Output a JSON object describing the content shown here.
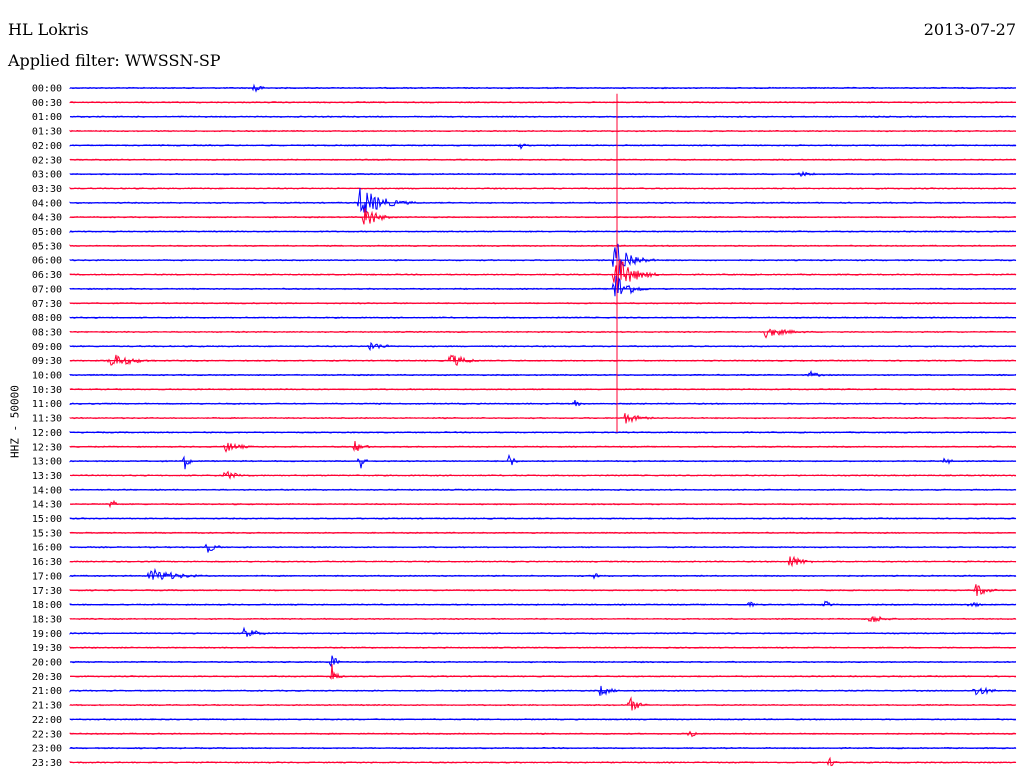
{
  "header": {
    "station": "HL Lokris",
    "date": "2013-07-27",
    "filter": "Applied filter: WWSSN-SP"
  },
  "chart_data": {
    "type": "line",
    "ylabel": "HHZ - 50000",
    "series_colors": [
      "#0000ff",
      "#ff0033"
    ],
    "rows": [
      "00:00",
      "00:30",
      "01:00",
      "01:30",
      "02:00",
      "02:30",
      "03:00",
      "03:30",
      "04:00",
      "04:30",
      "05:00",
      "05:30",
      "06:00",
      "06:30",
      "07:00",
      "07:30",
      "08:00",
      "08:30",
      "09:00",
      "09:30",
      "10:00",
      "10:30",
      "11:00",
      "11:30",
      "12:00",
      "12:30",
      "13:00",
      "13:30",
      "14:00",
      "14:30",
      "15:00",
      "15:30",
      "16:00",
      "16:30",
      "17:00",
      "17:30",
      "18:00",
      "18:30",
      "19:00",
      "19:30",
      "20:00",
      "20:30",
      "21:00",
      "21:30",
      "22:00",
      "22:30",
      "23:00",
      "23:30"
    ],
    "events": [
      {
        "row": 0,
        "x": 255,
        "amp": 9,
        "dur": 12
      },
      {
        "row": 4,
        "x": 520,
        "amp": 4,
        "dur": 15
      },
      {
        "row": 6,
        "x": 800,
        "amp": 3,
        "dur": 40
      },
      {
        "row": 8,
        "x": 360,
        "amp": 16,
        "dur": 60
      },
      {
        "row": 9,
        "x": 365,
        "amp": 14,
        "dur": 30
      },
      {
        "row": 12,
        "x": 615,
        "amp": 22,
        "dur": 40
      },
      {
        "row": 13,
        "x": 615,
        "amp": 22,
        "dur": 45
      },
      {
        "row": 14,
        "x": 615,
        "amp": 18,
        "dur": 35
      },
      {
        "row": 17,
        "x": 765,
        "amp": 6,
        "dur": 60
      },
      {
        "row": 18,
        "x": 370,
        "amp": 5,
        "dur": 40
      },
      {
        "row": 19,
        "x": 110,
        "amp": 8,
        "dur": 60
      },
      {
        "row": 19,
        "x": 450,
        "amp": 8,
        "dur": 40
      },
      {
        "row": 20,
        "x": 810,
        "amp": 4,
        "dur": 25
      },
      {
        "row": 22,
        "x": 575,
        "amp": 4,
        "dur": 15
      },
      {
        "row": 23,
        "x": 625,
        "amp": 6,
        "dur": 40
      },
      {
        "row": 25,
        "x": 225,
        "amp": 6,
        "dur": 40
      },
      {
        "row": 25,
        "x": 355,
        "amp": 6,
        "dur": 25
      },
      {
        "row": 26,
        "x": 185,
        "amp": 9,
        "dur": 12
      },
      {
        "row": 26,
        "x": 360,
        "amp": 12,
        "dur": 10
      },
      {
        "row": 26,
        "x": 510,
        "amp": 10,
        "dur": 10
      },
      {
        "row": 26,
        "x": 945,
        "amp": 5,
        "dur": 15
      },
      {
        "row": 27,
        "x": 225,
        "amp": 5,
        "dur": 40
      },
      {
        "row": 29,
        "x": 112,
        "amp": 9,
        "dur": 8
      },
      {
        "row": 32,
        "x": 205,
        "amp": 8,
        "dur": 25
      },
      {
        "row": 33,
        "x": 790,
        "amp": 7,
        "dur": 35
      },
      {
        "row": 34,
        "x": 150,
        "amp": 8,
        "dur": 70
      },
      {
        "row": 34,
        "x": 595,
        "amp": 4,
        "dur": 20
      },
      {
        "row": 35,
        "x": 975,
        "amp": 8,
        "dur": 30
      },
      {
        "row": 36,
        "x": 750,
        "amp": 6,
        "dur": 10
      },
      {
        "row": 36,
        "x": 825,
        "amp": 5,
        "dur": 15
      },
      {
        "row": 36,
        "x": 970,
        "amp": 5,
        "dur": 20
      },
      {
        "row": 37,
        "x": 870,
        "amp": 5,
        "dur": 40
      },
      {
        "row": 38,
        "x": 245,
        "amp": 8,
        "dur": 30
      },
      {
        "row": 40,
        "x": 332,
        "amp": 12,
        "dur": 10
      },
      {
        "row": 41,
        "x": 332,
        "amp": 14,
        "dur": 12
      },
      {
        "row": 42,
        "x": 600,
        "amp": 6,
        "dur": 30
      },
      {
        "row": 42,
        "x": 975,
        "amp": 6,
        "dur": 40
      },
      {
        "row": 43,
        "x": 630,
        "amp": 8,
        "dur": 25
      },
      {
        "row": 45,
        "x": 690,
        "amp": 5,
        "dur": 20
      },
      {
        "row": 47,
        "x": 830,
        "amp": 7,
        "dur": 10
      }
    ]
  }
}
